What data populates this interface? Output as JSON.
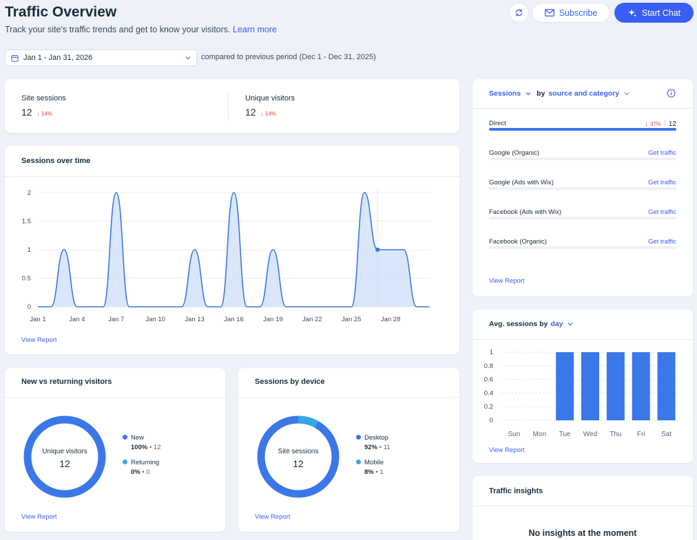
{
  "header": {
    "title": "Traffic Overview",
    "subtitle": "Track your site's traffic trends and get to know your visitors.",
    "learn_more": "Learn more",
    "subscribe_label": "Subscribe",
    "start_chat_label": "Start Chat"
  },
  "date_range": {
    "value": "Jan 1 - Jan 31, 2026",
    "compare_text": "compared to previous period (Dec 1 - Dec 31, 2025)"
  },
  "metrics": {
    "site_sessions": {
      "label": "Site sessions",
      "value": "12",
      "change": "14%"
    },
    "unique_visitors": {
      "label": "Unique visitors",
      "value": "12",
      "change": "14%"
    }
  },
  "sessions_over_time": {
    "title": "Sessions over time",
    "view_report": "View Report"
  },
  "new_vs_returning": {
    "title": "New vs returning visitors",
    "center_label": "Unique visitors",
    "center_value": "12",
    "legend": [
      {
        "name": "New",
        "percent": "100%",
        "count": "12",
        "color": "#3a77e8"
      },
      {
        "name": "Returning",
        "percent": "0%",
        "count": "0",
        "color": "#38a6e6"
      }
    ],
    "view_report": "View Report"
  },
  "sessions_by_device": {
    "title": "Sessions by device",
    "center_label": "Site sessions",
    "center_value": "12",
    "legend": [
      {
        "name": "Desktop",
        "percent": "92%",
        "count": "11",
        "color": "#3a77e8"
      },
      {
        "name": "Mobile",
        "percent": "8%",
        "count": "1",
        "color": "#38a6e6"
      }
    ],
    "view_report": "View Report"
  },
  "sessions_by_source": {
    "metric_label": "Sessions",
    "by_label": "by",
    "dimension_label": "source and category",
    "rows": [
      {
        "name": "Direct",
        "change": "37%",
        "value": "12",
        "share": 1.0
      },
      {
        "name": "Google (Organic)",
        "action": "Get traffic",
        "share": 0
      },
      {
        "name": "Google (Ads with Wix)",
        "action": "Get traffic",
        "share": 0
      },
      {
        "name": "Facebook (Ads with Wix)",
        "action": "Get traffic",
        "share": 0
      },
      {
        "name": "Facebook (Organic)",
        "action": "Get traffic",
        "share": 0
      }
    ],
    "view_report": "View Report"
  },
  "avg_sessions": {
    "title_prefix": "Avg. sessions by",
    "dimension": "day",
    "view_report": "View Report"
  },
  "traffic_insights": {
    "title": "Traffic insights",
    "empty_text": "No insights at the moment"
  },
  "colors": {
    "accent": "#3a5ef5",
    "series": "#3a77e8",
    "fill": "#d6e3fa",
    "negative": "#d6453d"
  },
  "chart_data": [
    {
      "type": "area",
      "title": "Sessions over time",
      "xlabel": "",
      "ylabel": "",
      "ylim": [
        0,
        2
      ],
      "y_ticks": [
        "0",
        "0.5",
        "1",
        "1.5",
        "2"
      ],
      "x_tick_labels": [
        "Jan 1",
        "Jan 4",
        "Jan 7",
        "Jan 10",
        "Jan 13",
        "Jan 16",
        "Jan 19",
        "Jan 22",
        "Jan 25",
        "Jan 28"
      ],
      "x": [
        1,
        2,
        3,
        4,
        5,
        6,
        7,
        8,
        9,
        10,
        11,
        12,
        13,
        14,
        15,
        16,
        17,
        18,
        19,
        20,
        21,
        22,
        23,
        24,
        25,
        26,
        27,
        28,
        29,
        30,
        31
      ],
      "series": [
        {
          "name": "Site sessions",
          "values": [
            0,
            0,
            1,
            0,
            0,
            0,
            2,
            0,
            0,
            0,
            0,
            0,
            1,
            0,
            0,
            2,
            0,
            0,
            1,
            0,
            0,
            0,
            0,
            0,
            0,
            2,
            1,
            1,
            1,
            0,
            0
          ]
        }
      ],
      "highlight_point": {
        "x": 27,
        "y": 1
      }
    },
    {
      "type": "bar",
      "title": "Avg. sessions by day",
      "categories": [
        "Sun",
        "Mon",
        "Tue",
        "Wed",
        "Thu",
        "Fri",
        "Sat"
      ],
      "values": [
        0,
        0,
        1,
        1,
        1,
        1,
        1
      ],
      "ylim": [
        0,
        1
      ],
      "y_ticks": [
        "0",
        "0.2",
        "0.4",
        "0.6",
        "0.8",
        "1"
      ]
    }
  ]
}
